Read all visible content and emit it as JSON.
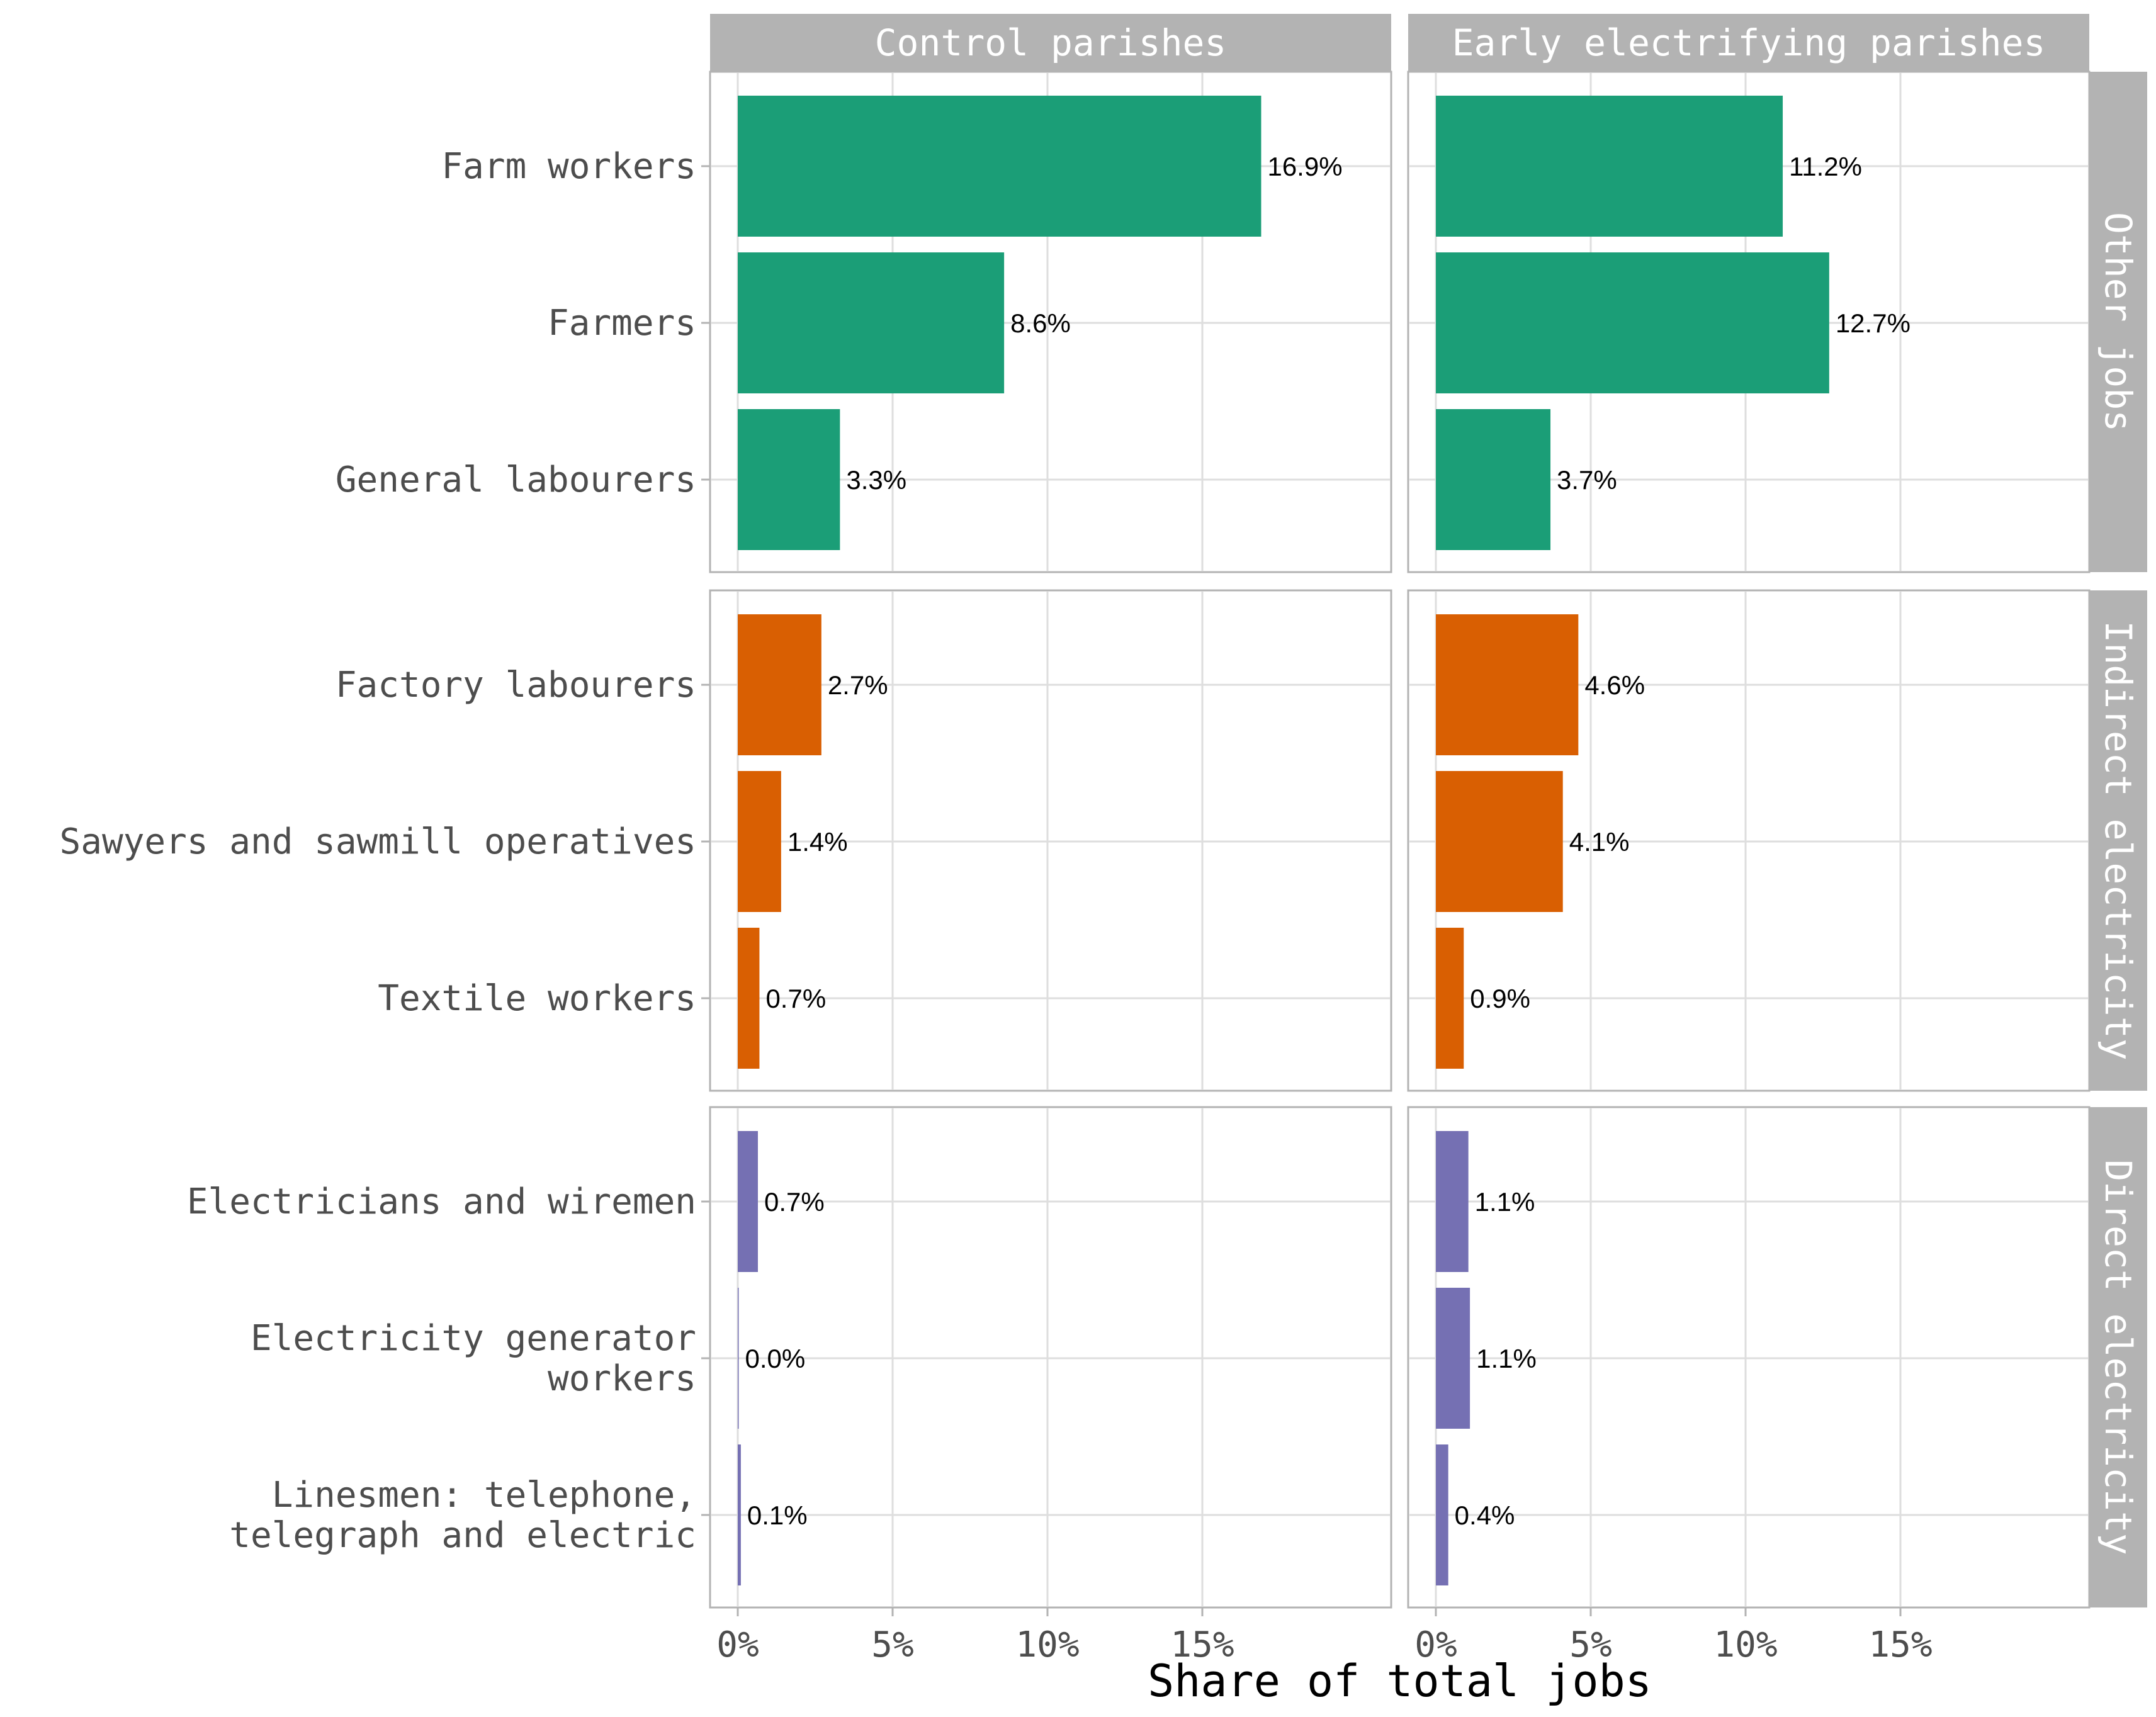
{
  "chart_data": {
    "type": "bar",
    "orientation": "horizontal",
    "title": "",
    "xlabel": "Share of total jobs",
    "ylabel": "",
    "xlim": [
      0,
      19.5
    ],
    "x_ticks": [
      0,
      5,
      10,
      15
    ],
    "x_tick_labels": [
      "0%",
      "5%",
      "10%",
      "15%"
    ],
    "grid": true,
    "legend": "none",
    "facet_columns": [
      "Control parishes",
      "Early electrifying parishes"
    ],
    "facet_rows": [
      {
        "name": "Other jobs",
        "color": "#1B9E77",
        "categories": [
          "Farm workers",
          "Farmers",
          "General labourers"
        ],
        "values": {
          "Control parishes": [
            16.9,
            8.6,
            3.3
          ],
          "Early electrifying parishes": [
            11.2,
            12.7,
            3.7
          ]
        },
        "labels": {
          "Control parishes": [
            "16.9%",
            "8.6%",
            "3.3%"
          ],
          "Early electrifying parishes": [
            "11.2%",
            "12.7%",
            "3.7%"
          ]
        }
      },
      {
        "name": "Indirect electricity",
        "color": "#D95F02",
        "categories": [
          "Factory labourers",
          "Sawyers and sawmill operatives",
          "Textile workers"
        ],
        "values": {
          "Control parishes": [
            2.7,
            1.4,
            0.7
          ],
          "Early electrifying parishes": [
            4.6,
            4.1,
            0.9
          ]
        },
        "labels": {
          "Control parishes": [
            "2.7%",
            "1.4%",
            "0.7%"
          ],
          "Early electrifying parishes": [
            "4.6%",
            "4.1%",
            "0.9%"
          ]
        }
      },
      {
        "name": "Direct electricity",
        "color": "#7570B3",
        "categories": [
          "Electricians and wiremen",
          "Electricity generator\nworkers",
          "Linesmen: telephone,\ntelegraph and electric"
        ],
        "values": {
          "Control parishes": [
            0.65,
            0.02,
            0.1
          ],
          "Early electrifying parishes": [
            1.05,
            1.1,
            0.4
          ]
        },
        "labels": {
          "Control parishes": [
            "0.7%",
            "0.0%",
            "0.1%"
          ],
          "Early electrifying parishes": [
            "1.1%",
            "1.1%",
            "0.4%"
          ]
        }
      }
    ]
  },
  "colors": {
    "strip_background": "#B3B3B3",
    "panel_border": "#B3B3B3",
    "grid": "#DEDEDE"
  }
}
